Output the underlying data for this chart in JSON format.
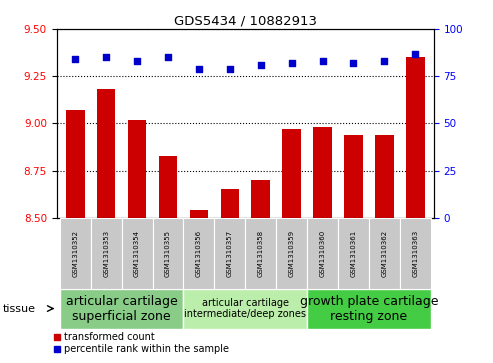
{
  "title": "GDS5434 / 10882913",
  "samples": [
    "GSM1310352",
    "GSM1310353",
    "GSM1310354",
    "GSM1310355",
    "GSM1310356",
    "GSM1310357",
    "GSM1310358",
    "GSM1310359",
    "GSM1310360",
    "GSM1310361",
    "GSM1310362",
    "GSM1310363"
  ],
  "transformed_count": [
    9.07,
    9.18,
    9.02,
    8.83,
    8.54,
    8.65,
    8.7,
    8.97,
    8.98,
    8.94,
    8.94,
    9.35
  ],
  "percentile_rank": [
    84,
    85,
    83,
    85,
    79,
    79,
    81,
    82,
    83,
    82,
    83,
    87
  ],
  "ylim_left": [
    8.5,
    9.5
  ],
  "ylim_right": [
    0,
    100
  ],
  "yticks_left": [
    8.5,
    8.75,
    9.0,
    9.25,
    9.5
  ],
  "yticks_right": [
    0,
    25,
    50,
    75,
    100
  ],
  "bar_color": "#cc0000",
  "dot_color": "#0000cc",
  "sample_bg_color": "#c8c8c8",
  "tissue_groups": [
    {
      "label": "articular cartilage\nsuperficial zone",
      "start": 0,
      "end": 4,
      "color": "#88cc88",
      "fontsize": 9
    },
    {
      "label": "articular cartilage\nintermediate/deep zones",
      "start": 4,
      "end": 8,
      "color": "#bbeeaa",
      "fontsize": 7
    },
    {
      "label": "growth plate cartilage\nresting zone",
      "start": 8,
      "end": 12,
      "color": "#44cc44",
      "fontsize": 9
    }
  ],
  "legend_bar_label": "transformed count",
  "legend_dot_label": "percentile rank within the sample",
  "tissue_label": "tissue"
}
